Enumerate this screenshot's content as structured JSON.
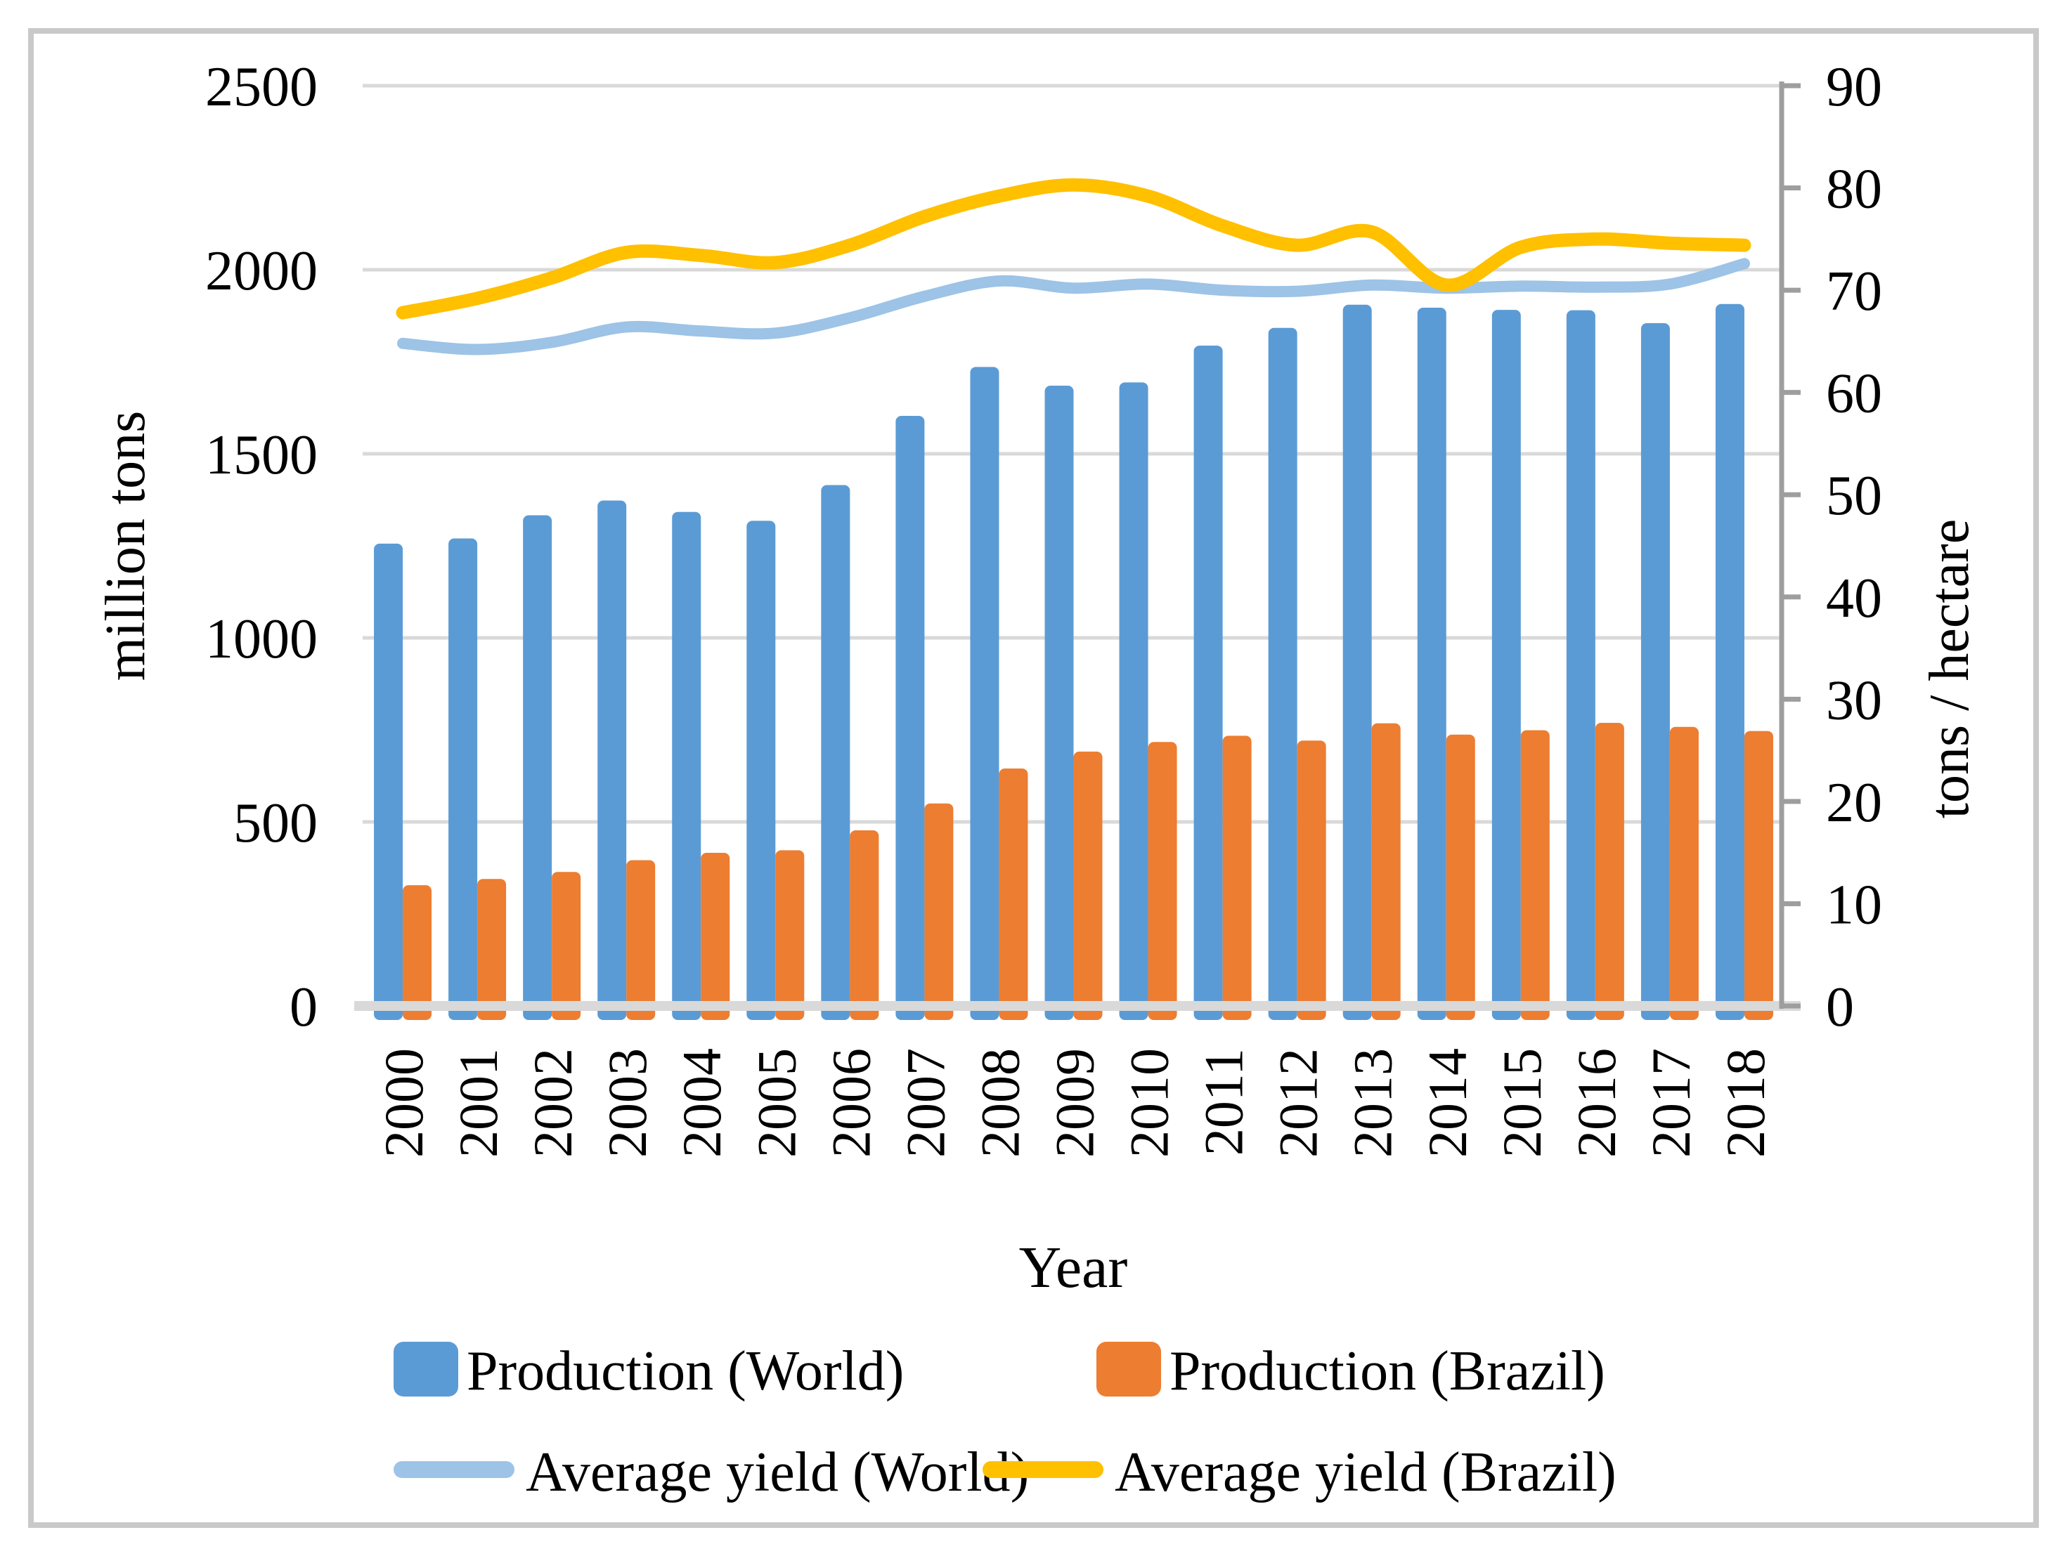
{
  "chart_data": {
    "type": "bar+line",
    "title": "",
    "categories": [
      "2000",
      "2001",
      "2002",
      "2003",
      "2004",
      "2005",
      "2006",
      "2007",
      "2008",
      "2009",
      "2010",
      "2011",
      "2012",
      "2013",
      "2014",
      "2015",
      "2016",
      "2017",
      "2018"
    ],
    "series": [
      {
        "name": "Production (World)",
        "type": "bar",
        "axis": "left",
        "color": "#5B9BD5",
        "values": [
          1256,
          1270,
          1333,
          1373,
          1342,
          1318,
          1415,
          1603,
          1736,
          1685,
          1694,
          1794,
          1842,
          1905,
          1897,
          1891,
          1890,
          1855,
          1907
        ]
      },
      {
        "name": "Production (Brazil)",
        "type": "bar",
        "axis": "left",
        "color": "#ED7D31",
        "values": [
          328,
          345,
          364,
          396,
          416,
          423,
          477,
          550,
          645,
          691,
          717,
          734,
          721,
          768,
          737,
          749,
          769,
          758,
          747
        ]
      },
      {
        "name": "Average yield (World)",
        "type": "line",
        "axis": "right",
        "color": "#9DC3E6",
        "values": [
          64.8,
          64.2,
          64.9,
          66.4,
          66.0,
          65.8,
          67.3,
          69.4,
          70.9,
          70.2,
          70.6,
          70.0,
          69.9,
          70.5,
          70.2,
          70.4,
          70.3,
          70.6,
          72.6
        ]
      },
      {
        "name": "Average yield (Brazil)",
        "type": "line",
        "axis": "right",
        "color": "#FFC000",
        "values": [
          67.8,
          69.2,
          71.2,
          73.7,
          73.4,
          72.7,
          74.4,
          77.2,
          79.2,
          80.3,
          79.2,
          76.3,
          74.4,
          75.7,
          70.5,
          74.2,
          75.0,
          74.6,
          74.4
        ]
      }
    ],
    "xlabel": "Year",
    "ylabel_left": "million tons",
    "ylabel_right": "tons / hectare",
    "ylim_left": [
      0,
      2500
    ],
    "ylim_right": [
      0,
      90
    ],
    "yticks_left": [
      "2500",
      "2000",
      "1500",
      "1000",
      "500",
      "0"
    ],
    "yticks_right": [
      "90",
      "80",
      "70",
      "60",
      "50",
      "40",
      "30",
      "20",
      "10",
      "0"
    ],
    "grid": true,
    "legend_position": "bottom"
  },
  "style": {
    "gridline_color": "#D9D9D9",
    "bottom_axis_color": "#D9D9D9",
    "right_axis_color": "#9E9E9E",
    "frame_border_color": "#C9C9C9",
    "background_color": "#FFFFFF",
    "text_color": "#000000"
  }
}
